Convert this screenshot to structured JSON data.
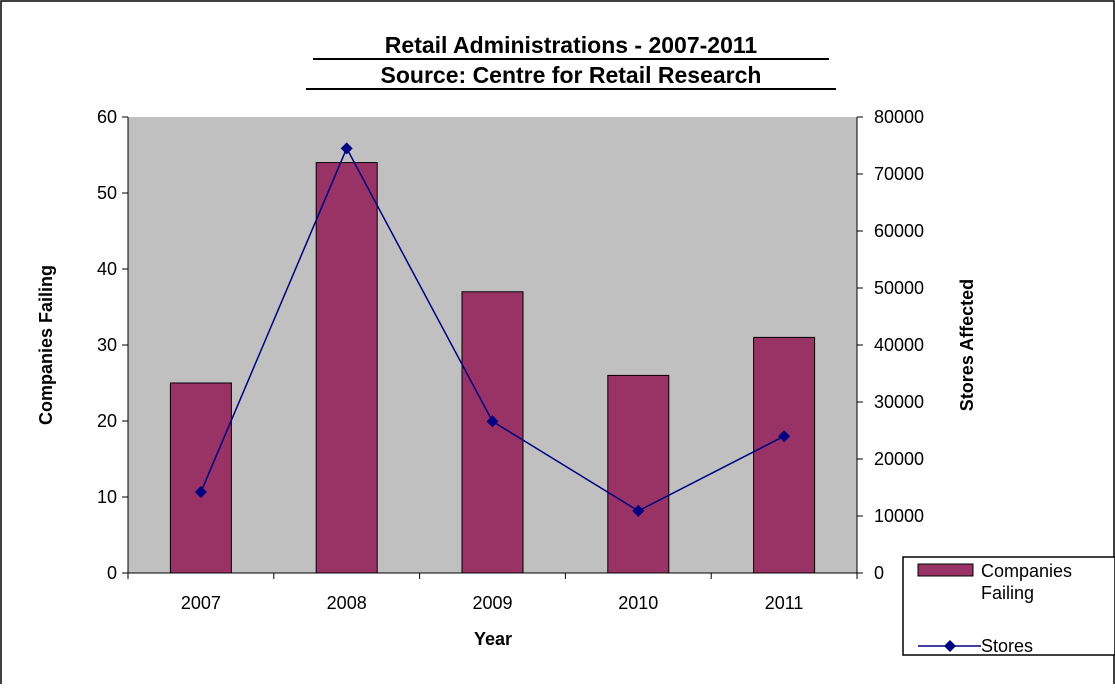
{
  "colors": {
    "plot_area_bg": "#c0c0c0",
    "bar_fill": "#993366",
    "line_stroke": "#000080",
    "marker_fill": "#000080",
    "axis_color": "#000000",
    "frame_border": "#000000"
  },
  "chart_data": {
    "type": "bar",
    "title": "Retail Administrations - 2007-2011",
    "subtitle": "Source: Centre for Retail Research",
    "xlabel": "Year",
    "ylabel": "Companies Failing",
    "y2label": "Stores Affected",
    "categories": [
      "2007",
      "2008",
      "2009",
      "2010",
      "2011"
    ],
    "ylim": [
      0,
      60
    ],
    "y_ticks": [
      "0",
      "10",
      "20",
      "30",
      "40",
      "50",
      "60"
    ],
    "y2lim": [
      0,
      80000
    ],
    "y2_ticks": [
      "0",
      "10000",
      "20000",
      "30000",
      "40000",
      "50000",
      "60000",
      "70000",
      "80000"
    ],
    "grid": false,
    "legend_position": "bottom-right",
    "series": [
      {
        "name": "Companies Failing",
        "type": "bar",
        "axis": "left",
        "values": [
          25,
          54,
          37,
          26,
          31
        ]
      },
      {
        "name": "Stores",
        "type": "line",
        "axis": "right",
        "marker": "diamond",
        "values": [
          14200,
          74500,
          26600,
          10900,
          24000
        ]
      }
    ]
  }
}
